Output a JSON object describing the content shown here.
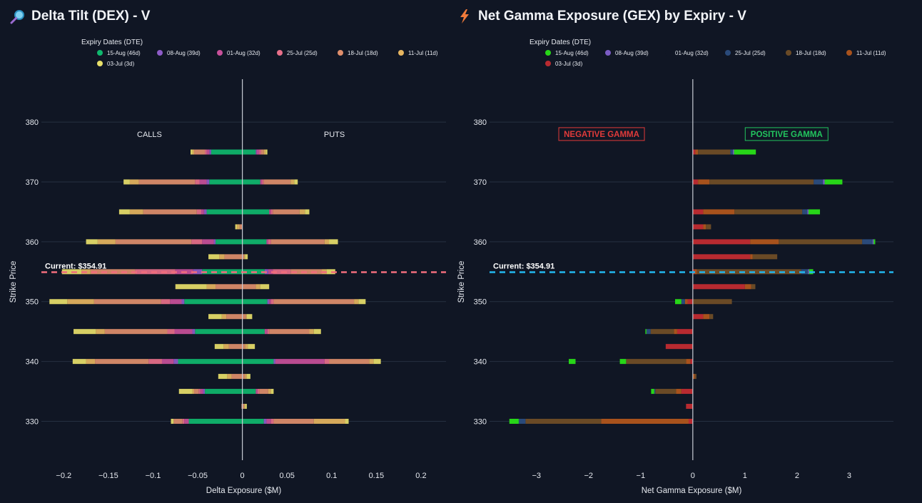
{
  "titles": {
    "dex": "Delta Tilt (DEX) - V",
    "gex": "Net Gamma Exposure (GEX) by Expiry - V"
  },
  "icons": {
    "dex": "magnifier-icon",
    "gex": "lightning-icon"
  },
  "colors": {
    "background": "#101624",
    "grid": "#263041",
    "dex_current_line": "#f26d7d",
    "gex_current_line": "#22b8f0"
  },
  "dex_legend": {
    "title": "Expiry Dates (DTE)",
    "items": [
      {
        "label": "15-Aug (46d)",
        "color": "#0fb86e"
      },
      {
        "label": "08-Aug (39d)",
        "color": "#8e5cc8"
      },
      {
        "label": "01-Aug (32d)",
        "color": "#c8509a"
      },
      {
        "label": "25-Jul (25d)",
        "color": "#e8708a"
      },
      {
        "label": "18-Jul (18d)",
        "color": "#e08f6c"
      },
      {
        "label": "11-Jul (11d)",
        "color": "#e6b560"
      },
      {
        "label": "03-Jul (3d)",
        "color": "#e8e06a"
      }
    ]
  },
  "gex_legend": {
    "title": "Expiry Dates (DTE)",
    "items": [
      {
        "label": "15-Aug (46d)",
        "color": "#27d618"
      },
      {
        "label": "08-Aug (39d)",
        "color": "#7b5cc4"
      },
      {
        "label": "01-Aug (32d)",
        "color": "#101624"
      },
      {
        "label": "25-Jul (25d)",
        "color": "#2a4a7a"
      },
      {
        "label": "18-Jul (18d)",
        "color": "#6a4a26"
      },
      {
        "label": "11-Jul (11d)",
        "color": "#a8521c"
      },
      {
        "label": "03-Jul (3d)",
        "color": "#b82a30"
      }
    ]
  },
  "chart_data": [
    {
      "type": "bar",
      "orientation": "horizontal",
      "barmode": "stacked",
      "title": "Delta Tilt (DEX) - V",
      "xlabel": "Delta Exposure ($M)",
      "ylabel": "Strike Price",
      "xlim": [
        -0.225,
        0.228
      ],
      "ylim": [
        323.5,
        385.5
      ],
      "xticks": [
        -0.2,
        -0.15,
        -0.1,
        -0.05,
        0,
        0.05,
        0.1,
        0.15,
        0.2
      ],
      "xtick_labels": [
        "−0.2",
        "−0.15",
        "−0.1",
        "−0.05",
        "0",
        "0.05",
        "0.1",
        "0.15",
        "0.2"
      ],
      "yticks": [
        330,
        340,
        350,
        360,
        370,
        380
      ],
      "annotations": {
        "calls": "CALLS",
        "puts": "PUTS",
        "current": "Current: $354.91"
      },
      "current_price": 354.91,
      "strikes": [
        330,
        332.5,
        335,
        337.5,
        340,
        342.5,
        345,
        347.5,
        350,
        352.5,
        355,
        357.5,
        360,
        362.5,
        365,
        367.5,
        370,
        372.5,
        375
      ],
      "series": [
        {
          "name": "15-Aug (46d)",
          "color": "#0fb86e",
          "calls": [
            -0.06,
            0,
            -0.042,
            0,
            -0.072,
            0,
            -0.053,
            0,
            -0.065,
            0,
            -0.045,
            0,
            -0.03,
            0,
            -0.04,
            0,
            -0.037,
            0,
            -0.035
          ],
          "puts": [
            0.024,
            0,
            0.015,
            0,
            0.035,
            0,
            0.025,
            0,
            0.028,
            0,
            0.025,
            0,
            0.027,
            0,
            0.03,
            0,
            0.02,
            0,
            0.015
          ]
        },
        {
          "name": "08-Aug (39d)",
          "color": "#8e5cc8",
          "calls": [
            0,
            0,
            -0.002,
            0,
            -0.005,
            0,
            -0.003,
            0,
            -0.003,
            0,
            -0.01,
            0,
            -0.002,
            0,
            -0.003,
            0,
            -0.003,
            0,
            -0.002
          ],
          "puts": [
            0.003,
            0,
            0,
            0,
            0.002,
            0,
            0,
            0,
            0.002,
            0,
            0.004,
            0,
            0,
            0,
            0,
            0,
            0,
            0,
            0.001
          ]
        },
        {
          "name": "01-Aug (32d)",
          "color": "#c8509a",
          "calls": [
            -0.005,
            0,
            -0.003,
            0,
            -0.013,
            0,
            -0.02,
            0,
            -0.013,
            0,
            -0.02,
            0,
            -0.013,
            0,
            -0.003,
            0,
            -0.008,
            0,
            -0.003
          ],
          "puts": [
            0.005,
            0,
            0.002,
            0,
            0.055,
            0,
            0.003,
            0,
            0.002,
            0,
            0.005,
            0,
            0.002,
            0,
            0.002,
            0,
            0.002,
            0,
            0.003
          ]
        },
        {
          "name": "25-Jul (25d)",
          "color": "#e8708a",
          "calls": [
            -0.002,
            0,
            -0.002,
            0,
            -0.015,
            0,
            -0.008,
            0,
            -0.01,
            0,
            -0.045,
            0,
            -0.012,
            0,
            -0.005,
            0,
            -0.005,
            0,
            -0.002
          ],
          "puts": [
            0.003,
            0,
            0.002,
            0,
            0.005,
            0,
            0.002,
            0,
            0.003,
            0,
            0.02,
            0,
            0.003,
            0,
            0.002,
            0,
            0.002,
            0,
            0.002
          ]
        },
        {
          "name": "18-Jul (18d)",
          "color": "#e08f6c",
          "calls": [
            -0.01,
            -0.001,
            -0.005,
            -0.012,
            -0.06,
            -0.015,
            -0.07,
            -0.018,
            -0.075,
            -0.03,
            -0.05,
            -0.02,
            -0.085,
            -0.003,
            -0.06,
            0,
            -0.063,
            0,
            -0.012
          ],
          "puts": [
            0.045,
            0.002,
            0.01,
            0.003,
            0.045,
            0.003,
            0.045,
            0.004,
            0.09,
            0.015,
            0.035,
            0.002,
            0.06,
            0,
            0.03,
            0,
            0.03,
            0,
            0.003
          ]
        },
        {
          "name": "11-Jul (11d)",
          "color": "#e6b560",
          "calls": [
            0,
            0,
            -0.002,
            -0.005,
            -0.01,
            -0.006,
            -0.01,
            -0.005,
            -0.03,
            -0.01,
            -0.01,
            -0.006,
            -0.02,
            -0.003,
            -0.015,
            0,
            -0.01,
            0,
            -0.002
          ],
          "puts": [
            0.035,
            0.001,
            0.003,
            0.002,
            0.005,
            0.003,
            0.005,
            0.001,
            0.005,
            0.005,
            0.005,
            0.001,
            0.005,
            0,
            0.006,
            0,
            0.004,
            0,
            0.002
          ]
        },
        {
          "name": "03-Jul (3d)",
          "color": "#e8e06a",
          "calls": [
            -0.003,
            0,
            -0.015,
            -0.01,
            -0.015,
            -0.01,
            -0.025,
            -0.015,
            -0.02,
            -0.035,
            -0.022,
            -0.012,
            -0.013,
            -0.002,
            -0.012,
            0,
            -0.007,
            0,
            -0.002
          ],
          "puts": [
            0.004,
            0.002,
            0.003,
            0.004,
            0.008,
            0.008,
            0.008,
            0.006,
            0.008,
            0.01,
            0.01,
            0.003,
            0.01,
            0,
            0.005,
            0,
            0.004,
            0,
            0.002
          ]
        }
      ]
    },
    {
      "type": "bar",
      "orientation": "horizontal",
      "barmode": "stacked",
      "title": "Net Gamma Exposure (GEX) by Expiry - V",
      "xlabel": "Net Gamma Exposure ($M)",
      "ylabel": "Strike Price",
      "xlim": [
        -3.9,
        3.85
      ],
      "ylim": [
        323.5,
        385.5
      ],
      "xticks": [
        -3,
        -2,
        -1,
        0,
        1,
        2,
        3
      ],
      "xtick_labels": [
        "−3",
        "−2",
        "−1",
        "0",
        "1",
        "2",
        "3"
      ],
      "yticks": [
        330,
        340,
        350,
        360,
        370,
        380
      ],
      "annotations": {
        "negative": "NEGATIVE GAMMA",
        "positive": "POSITIVE GAMMA",
        "current": "Current: $354.91"
      },
      "current_price": 354.91,
      "strikes": [
        330,
        332.5,
        335,
        337.5,
        340,
        342.5,
        345,
        347.5,
        350,
        352.5,
        355,
        357.5,
        360,
        362.5,
        365,
        367.5,
        370,
        372.5,
        375
      ],
      "series": [
        {
          "name": "03-Jul (3d)",
          "color": "#b82a30",
          "values": [
            -0.08,
            -0.13,
            -0.22,
            0,
            -0.05,
            -0.52,
            -0.3,
            0.2,
            -0.1,
            1.0,
            0.03,
            1.1,
            1.1,
            0.2,
            0.2,
            0,
            0.1,
            0,
            0.05
          ]
        },
        {
          "name": "11-Jul (11d)",
          "color": "#a8521c",
          "values": [
            -1.68,
            0,
            -0.1,
            0.04,
            -0.08,
            0,
            -0.06,
            0.12,
            -0.05,
            0.12,
            0.05,
            0.05,
            0.55,
            0.05,
            0.6,
            0,
            0.22,
            0,
            0.05
          ]
        },
        {
          "name": "18-Jul (18d)",
          "color": "#6a4a26",
          "values": [
            -1.45,
            0,
            -0.4,
            0.03,
            -1.15,
            0,
            -0.45,
            0.07,
            0.75,
            0.08,
            2.0,
            0.47,
            1.6,
            0.1,
            1.3,
            0,
            2.0,
            0,
            0.62
          ]
        },
        {
          "name": "25-Jul (25d)",
          "color": "#2a4a7a",
          "values": [
            -0.13,
            0,
            -0.02,
            0,
            0,
            0,
            -0.08,
            0,
            -0.07,
            0,
            0.13,
            0,
            0.2,
            0,
            0.1,
            0,
            0.18,
            0,
            0.05
          ]
        },
        {
          "name": "08-Aug (39d)",
          "color": "#7b5cc4",
          "values": [
            0,
            0,
            0,
            0,
            0,
            0,
            0,
            0,
            0,
            0,
            0.02,
            0,
            0.02,
            0,
            0.02,
            0,
            0.03,
            0,
            0.02
          ]
        },
        {
          "name": "15-Aug (46d)",
          "color": "#27d618",
          "values": [
            -0.15,
            0,
            -0.06,
            0,
            -0.12,
            0,
            -0.02,
            0,
            -0.12,
            0,
            0.08,
            0,
            0.03,
            0,
            0.22,
            0,
            0.34,
            0,
            0.42
          ]
        }
      ],
      "isolated_bars": [
        {
          "strike": 340,
          "series": "15-Aug (46d)",
          "from": -2.38,
          "to": -2.25
        },
        {
          "strike": 330,
          "series": "15-Aug (46d)",
          "from": -3.52,
          "to": -3.38
        }
      ]
    }
  ]
}
